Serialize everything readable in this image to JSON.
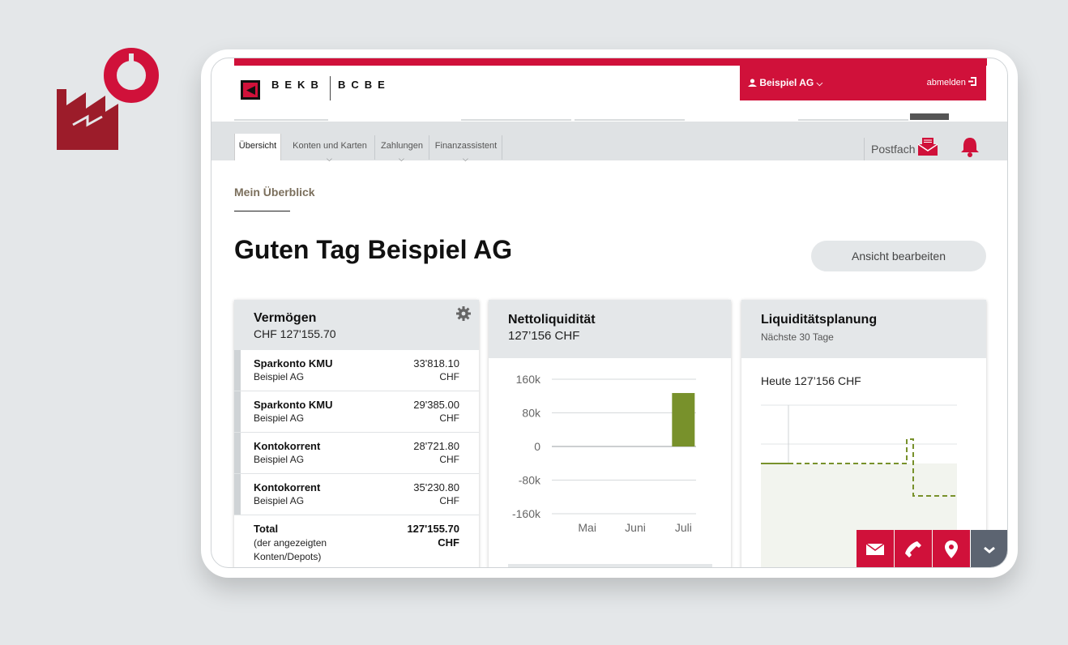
{
  "brand": {
    "left": "BEKB",
    "right": "BCBE"
  },
  "user": {
    "name": "Beispiel AG",
    "logout": "abmelden"
  },
  "nav": {
    "tabs": [
      {
        "label": "Übersicht"
      },
      {
        "label": "Konten und Karten"
      },
      {
        "label": "Zahlungen"
      },
      {
        "label": "Finanzassistent"
      }
    ],
    "postfach": "Postfach"
  },
  "page": {
    "section": "Mein Überblick",
    "greeting": "Guten Tag Beispiel AG",
    "edit_button": "Ansicht bearbeiten"
  },
  "assets": {
    "title": "Vermögen",
    "total_header": "CHF 127'155.70",
    "accounts": [
      {
        "name": "Sparkonto KMU",
        "owner": "Beispiel AG",
        "amount": "33'818.10",
        "currency": "CHF"
      },
      {
        "name": "Sparkonto KMU",
        "owner": "Beispiel AG",
        "amount": "29'385.00",
        "currency": "CHF"
      },
      {
        "name": "Kontokorrent",
        "owner": "Beispiel AG",
        "amount": "28'721.80",
        "currency": "CHF"
      },
      {
        "name": "Kontokorrent",
        "owner": "Beispiel AG",
        "amount": "35'230.80",
        "currency": "CHF"
      }
    ],
    "total": {
      "label": "Total",
      "note": "(der angezeigten Konten/Depots)",
      "amount": "127'155.70",
      "currency": "CHF"
    }
  },
  "liquidity": {
    "title": "Nettoliquidität",
    "value": "127’156 CHF"
  },
  "planning": {
    "title": "Liquiditätsplanung",
    "subtitle": "Nächste 30 Tage",
    "today": "Heute 127’156 CHF"
  },
  "chart_data": [
    {
      "type": "bar",
      "title": "Nettoliquidität",
      "categories": [
        "Mai",
        "Juni",
        "Juli"
      ],
      "values": [
        0,
        0,
        127156
      ],
      "yticks": [
        "160k",
        "80k",
        "0",
        "-80k",
        "-160k"
      ],
      "ylim": [
        -160000,
        160000
      ],
      "grid": true,
      "color": "#78912b"
    },
    {
      "type": "line",
      "title": "Liquiditätsplanung",
      "note": "Nächste 30 Tage",
      "grid": true,
      "color": "#78912b"
    }
  ],
  "colors": {
    "brand_red": "#d0113a",
    "chart_green": "#78912b",
    "contact_dark": "#5c6471"
  },
  "icons": [
    "factory-icon",
    "user-icon",
    "logout-icon",
    "mail-icon",
    "bell-icon",
    "gear-icon",
    "envelope-icon",
    "phone-icon",
    "location-icon",
    "chevron-down-icon"
  ]
}
